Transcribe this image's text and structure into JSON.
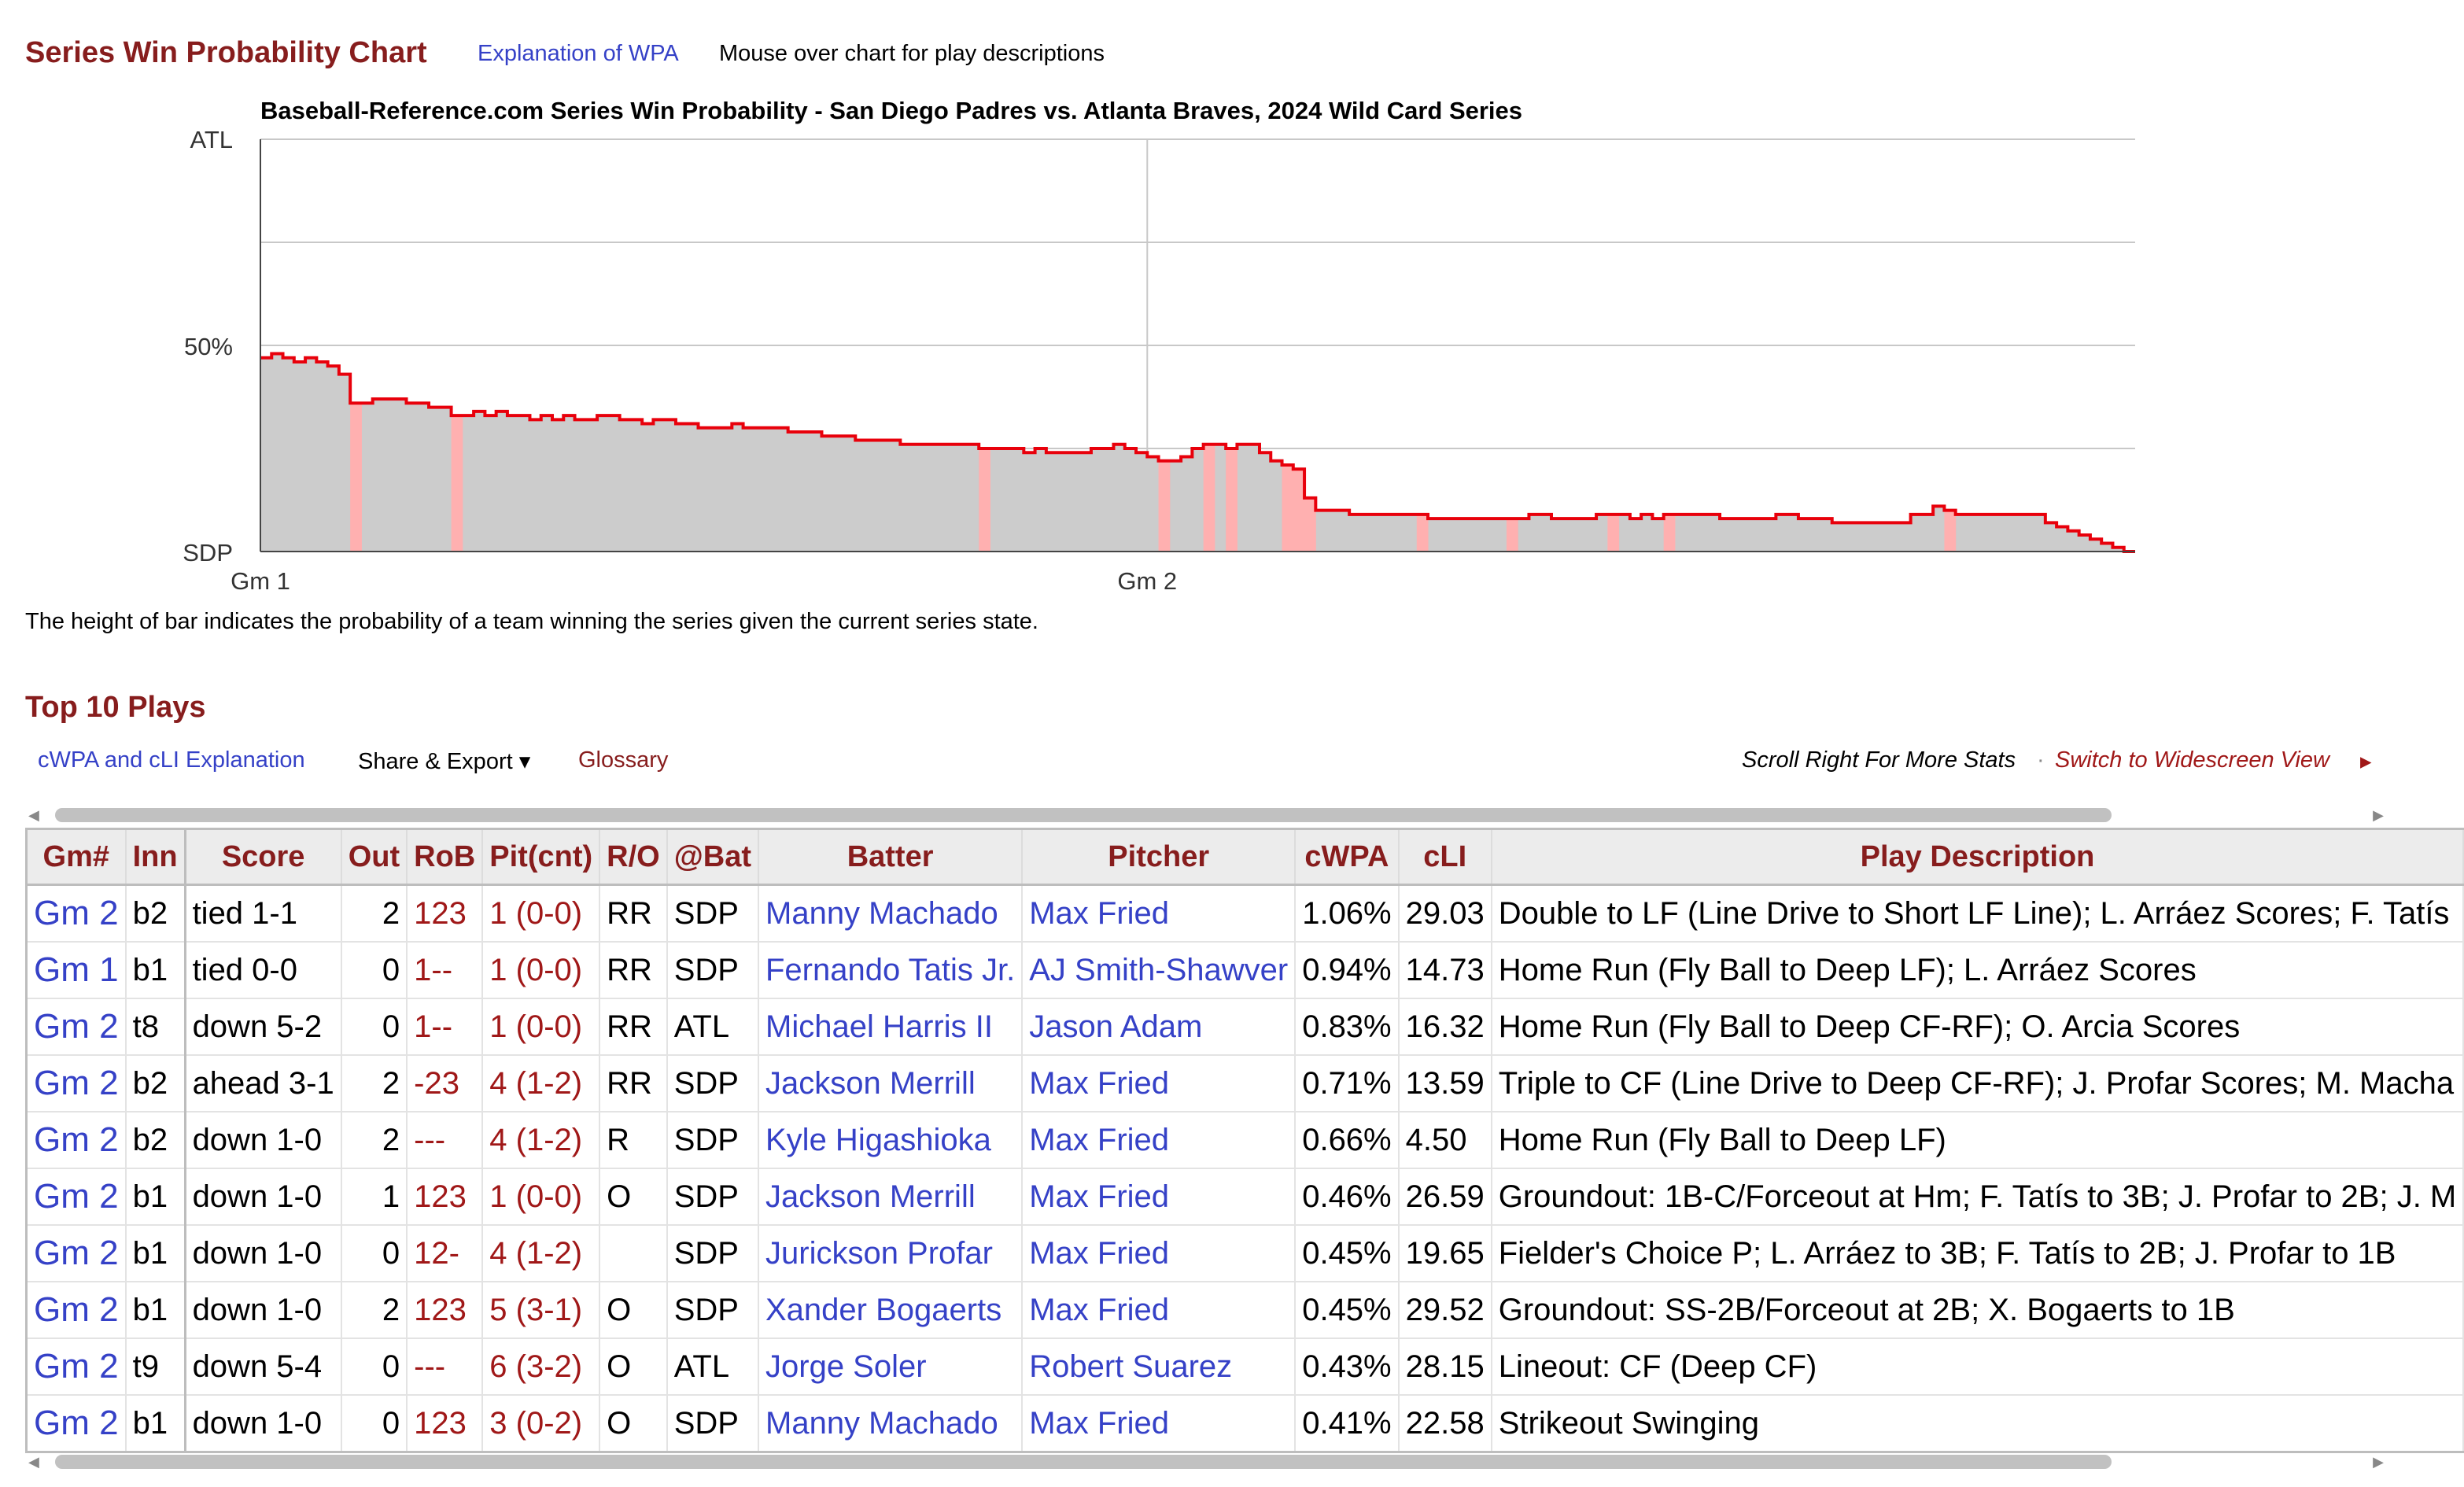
{
  "header": {
    "title": "Series Win Probability Chart",
    "wpa_link": "Explanation of WPA",
    "mouse_note": "Mouse over chart for play descriptions"
  },
  "chart_data": {
    "type": "area",
    "title": "Baseball-Reference.com Series Win Probability - San Diego Padres vs. Atlanta Braves, 2024 Wild Card Series",
    "y_top_label": "ATL",
    "y_mid_label": "50%",
    "y_bottom_label": "SDP",
    "x_tick_labels": [
      "Gm 1",
      "Gm 2"
    ],
    "ylim": [
      0,
      100
    ],
    "y_meaning": "ATL series win probability (%)",
    "grid": true,
    "series": [
      {
        "values": [
          47,
          48,
          47,
          46,
          47,
          46,
          45,
          43,
          36,
          36,
          37,
          37,
          37,
          36,
          36,
          35,
          35,
          33,
          33,
          34,
          33,
          34,
          33,
          33,
          32,
          33,
          32,
          33,
          32,
          32,
          33,
          33,
          32,
          32,
          31,
          32,
          32,
          31,
          31,
          30,
          30,
          30,
          31,
          30,
          30,
          30,
          30,
          29,
          29,
          29,
          28,
          28,
          28,
          27,
          27,
          27,
          27,
          26,
          26,
          26,
          26,
          26,
          26,
          26,
          25,
          25,
          25,
          25,
          24,
          25,
          24,
          24,
          24,
          24,
          25,
          25,
          26,
          25,
          24,
          23,
          22,
          22,
          23,
          25,
          26,
          26,
          25,
          26,
          26,
          24,
          22,
          21,
          20,
          13,
          10,
          10,
          10,
          9,
          9,
          9,
          9,
          9,
          9,
          9,
          8,
          8,
          8,
          8,
          8,
          8,
          8,
          8,
          8,
          9,
          9,
          8,
          8,
          8,
          8,
          9,
          9,
          9,
          8,
          9,
          8,
          9,
          9,
          9,
          9,
          9,
          8,
          8,
          8,
          8,
          8,
          9,
          9,
          8,
          8,
          8,
          7,
          7,
          7,
          7,
          7,
          7,
          7,
          9,
          9,
          11,
          10,
          9,
          9,
          9,
          9,
          9,
          9,
          9,
          9,
          7,
          6,
          5,
          4,
          3,
          2,
          1,
          0
        ]
      }
    ],
    "highlighted_steps": [
      8,
      17,
      64,
      80,
      84,
      86,
      91,
      92,
      93,
      103,
      111,
      120,
      125,
      150
    ],
    "gm2_start_index": 79,
    "colors": {
      "line": "#e8000b",
      "fill": "#cccccc",
      "highlight": "#ffb0b0",
      "grid": "#c8c8c8"
    }
  },
  "caption": "The height of bar indicates the probability of a team winning the series given the current series state.",
  "top_plays": {
    "title": "Top 10 Plays",
    "links": {
      "cwpa": "cWPA and cLI Explanation",
      "share": "Share & Export ▾",
      "glossary": "Glossary",
      "scroll_note": "Scroll Right For More Stats",
      "dot": "·",
      "widescreen": "Switch to Widescreen View",
      "widescreen_arrow": "▸"
    },
    "columns": [
      "Gm#",
      "Inn",
      "Score",
      "Out",
      "RoB",
      "Pit(cnt)",
      "R/O",
      "@Bat",
      "Batter",
      "Pitcher",
      "cWPA",
      "cLI",
      "Play Description"
    ],
    "rows": [
      [
        "Gm 2",
        "b2",
        "tied 1-1",
        "2",
        "123",
        "1 (0-0)",
        "RR",
        "SDP",
        "Manny Machado",
        "Max Fried",
        "1.06%",
        "29.03",
        "Double to LF (Line Drive to Short LF Line); L. Arráez Scores; F. Tatís"
      ],
      [
        "Gm 1",
        "b1",
        "tied 0-0",
        "0",
        "1--",
        "1 (0-0)",
        "RR",
        "SDP",
        "Fernando Tatis Jr.",
        "AJ Smith-Shawver",
        "0.94%",
        "14.73",
        "Home Run (Fly Ball to Deep LF); L. Arráez Scores"
      ],
      [
        "Gm 2",
        "t8",
        "down 5-2",
        "0",
        "1--",
        "1 (0-0)",
        "RR",
        "ATL",
        "Michael Harris II",
        "Jason Adam",
        "0.83%",
        "16.32",
        "Home Run (Fly Ball to Deep CF-RF); O. Arcia Scores"
      ],
      [
        "Gm 2",
        "b2",
        "ahead 3-1",
        "2",
        "-23",
        "4 (1-2)",
        "RR",
        "SDP",
        "Jackson Merrill",
        "Max Fried",
        "0.71%",
        "13.59",
        "Triple to CF (Line Drive to Deep CF-RF); J. Profar Scores; M. Macha"
      ],
      [
        "Gm 2",
        "b2",
        "down 1-0",
        "2",
        "---",
        "4 (1-2)",
        "R",
        "SDP",
        "Kyle Higashioka",
        "Max Fried",
        "0.66%",
        "4.50",
        "Home Run (Fly Ball to Deep LF)"
      ],
      [
        "Gm 2",
        "b1",
        "down 1-0",
        "1",
        "123",
        "1 (0-0)",
        "O",
        "SDP",
        "Jackson Merrill",
        "Max Fried",
        "0.46%",
        "26.59",
        "Groundout: 1B-C/Forceout at Hm; F. Tatís to 3B; J. Profar to 2B; J. M"
      ],
      [
        "Gm 2",
        "b1",
        "down 1-0",
        "0",
        "12-",
        "4 (1-2)",
        "",
        "SDP",
        "Jurickson Profar",
        "Max Fried",
        "0.45%",
        "19.65",
        "Fielder's Choice P; L. Arráez to 3B; F. Tatís to 2B; J. Profar to 1B"
      ],
      [
        "Gm 2",
        "b1",
        "down 1-0",
        "2",
        "123",
        "5 (3-1)",
        "O",
        "SDP",
        "Xander Bogaerts",
        "Max Fried",
        "0.45%",
        "29.52",
        "Groundout: SS-2B/Forceout at 2B; X. Bogaerts to 1B"
      ],
      [
        "Gm 2",
        "t9",
        "down 5-4",
        "0",
        "---",
        "6 (3-2)",
        "O",
        "ATL",
        "Jorge Soler",
        "Robert Suarez",
        "0.43%",
        "28.15",
        "Lineout: CF (Deep CF)"
      ],
      [
        "Gm 2",
        "b1",
        "down 1-0",
        "0",
        "123",
        "3 (0-2)",
        "O",
        "SDP",
        "Manny Machado",
        "Max Fried",
        "0.41%",
        "22.58",
        "Strikeout Swinging"
      ]
    ]
  }
}
